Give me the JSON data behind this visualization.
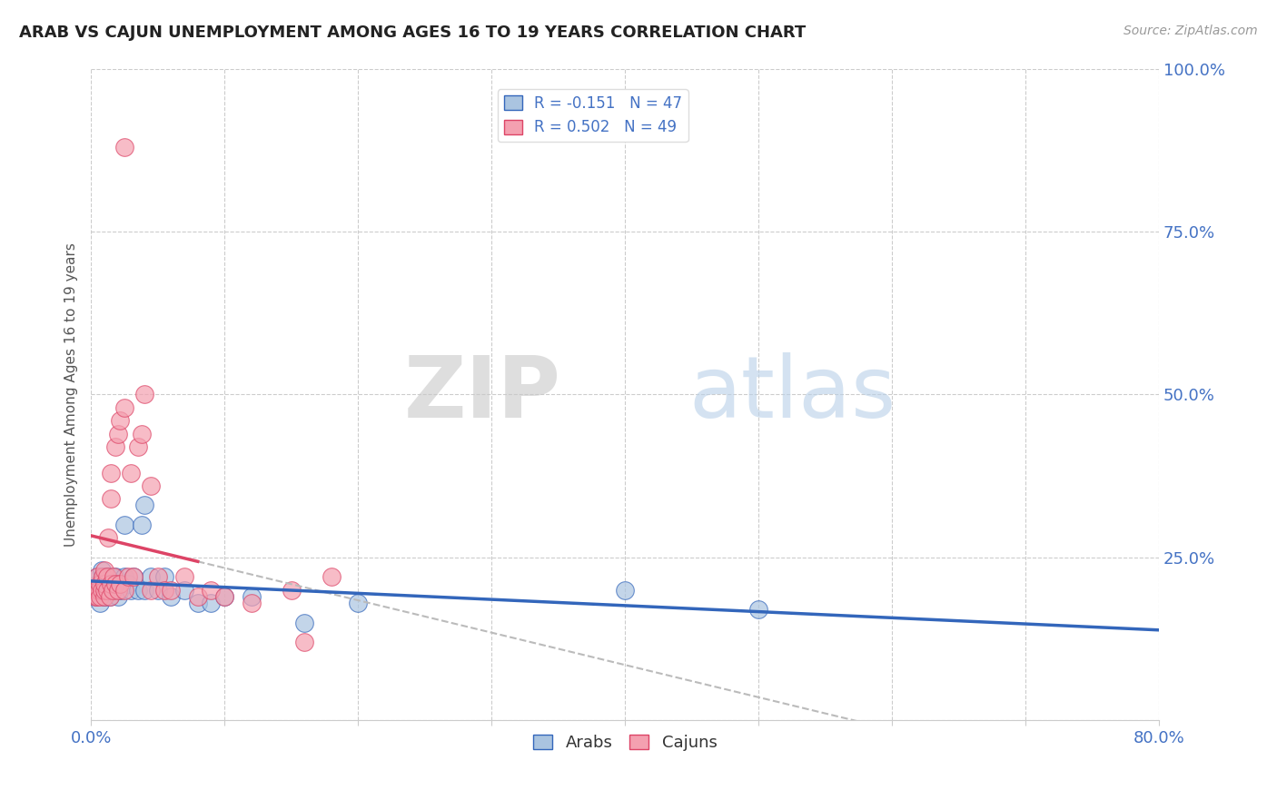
{
  "title": "ARAB VS CAJUN UNEMPLOYMENT AMONG AGES 16 TO 19 YEARS CORRELATION CHART",
  "source": "Source: ZipAtlas.com",
  "ylabel": "Unemployment Among Ages 16 to 19 years",
  "xlim": [
    0.0,
    0.8
  ],
  "ylim": [
    -0.05,
    1.05
  ],
  "plot_ylim": [
    0.0,
    1.0
  ],
  "xtick_positions": [
    0.0,
    0.1,
    0.2,
    0.3,
    0.4,
    0.5,
    0.6,
    0.7,
    0.8
  ],
  "ytick_positions": [
    0.0,
    0.25,
    0.5,
    0.75,
    1.0
  ],
  "arab_color": "#aac4e0",
  "cajun_color": "#f4a0b0",
  "arab_line_color": "#3366bb",
  "cajun_line_color": "#dd4466",
  "legend_arab_label": "R = -0.151   N = 47",
  "legend_cajun_label": "R = 0.502   N = 49",
  "watermark_zip": "ZIP",
  "watermark_atlas": "atlas",
  "background_color": "#ffffff",
  "grid_color": "#cccccc",
  "tick_label_color": "#4472c4",
  "arab_x": [
    0.003,
    0.005,
    0.005,
    0.006,
    0.007,
    0.008,
    0.008,
    0.009,
    0.01,
    0.01,
    0.01,
    0.01,
    0.012,
    0.012,
    0.013,
    0.014,
    0.015,
    0.015,
    0.015,
    0.016,
    0.017,
    0.018,
    0.02,
    0.02,
    0.022,
    0.025,
    0.025,
    0.028,
    0.03,
    0.032,
    0.035,
    0.038,
    0.04,
    0.04,
    0.045,
    0.05,
    0.055,
    0.06,
    0.07,
    0.08,
    0.09,
    0.1,
    0.12,
    0.16,
    0.2,
    0.4,
    0.5
  ],
  "arab_y": [
    0.19,
    0.21,
    0.22,
    0.2,
    0.18,
    0.23,
    0.21,
    0.22,
    0.19,
    0.2,
    0.21,
    0.22,
    0.2,
    0.22,
    0.21,
    0.19,
    0.2,
    0.21,
    0.22,
    0.2,
    0.21,
    0.22,
    0.19,
    0.21,
    0.2,
    0.22,
    0.3,
    0.21,
    0.2,
    0.22,
    0.2,
    0.3,
    0.33,
    0.2,
    0.22,
    0.2,
    0.22,
    0.19,
    0.2,
    0.18,
    0.18,
    0.19,
    0.19,
    0.15,
    0.18,
    0.2,
    0.17
  ],
  "cajun_x": [
    0.003,
    0.004,
    0.005,
    0.005,
    0.006,
    0.007,
    0.007,
    0.008,
    0.009,
    0.01,
    0.01,
    0.01,
    0.01,
    0.012,
    0.012,
    0.013,
    0.014,
    0.015,
    0.015,
    0.015,
    0.016,
    0.017,
    0.018,
    0.018,
    0.02,
    0.02,
    0.022,
    0.022,
    0.025,
    0.025,
    0.028,
    0.03,
    0.032,
    0.035,
    0.038,
    0.04,
    0.045,
    0.045,
    0.05,
    0.055,
    0.06,
    0.07,
    0.08,
    0.09,
    0.1,
    0.12,
    0.15,
    0.16,
    0.18
  ],
  "cajun_y": [
    0.19,
    0.2,
    0.19,
    0.22,
    0.2,
    0.19,
    0.21,
    0.2,
    0.22,
    0.19,
    0.2,
    0.21,
    0.23,
    0.2,
    0.22,
    0.28,
    0.19,
    0.21,
    0.34,
    0.38,
    0.2,
    0.22,
    0.21,
    0.42,
    0.2,
    0.44,
    0.21,
    0.46,
    0.2,
    0.48,
    0.22,
    0.38,
    0.22,
    0.42,
    0.44,
    0.5,
    0.2,
    0.36,
    0.22,
    0.2,
    0.2,
    0.22,
    0.19,
    0.2,
    0.19,
    0.18,
    0.2,
    0.12,
    0.22
  ],
  "cajun_outlier_x": [
    0.025
  ],
  "cajun_outlier_y": [
    0.88
  ]
}
